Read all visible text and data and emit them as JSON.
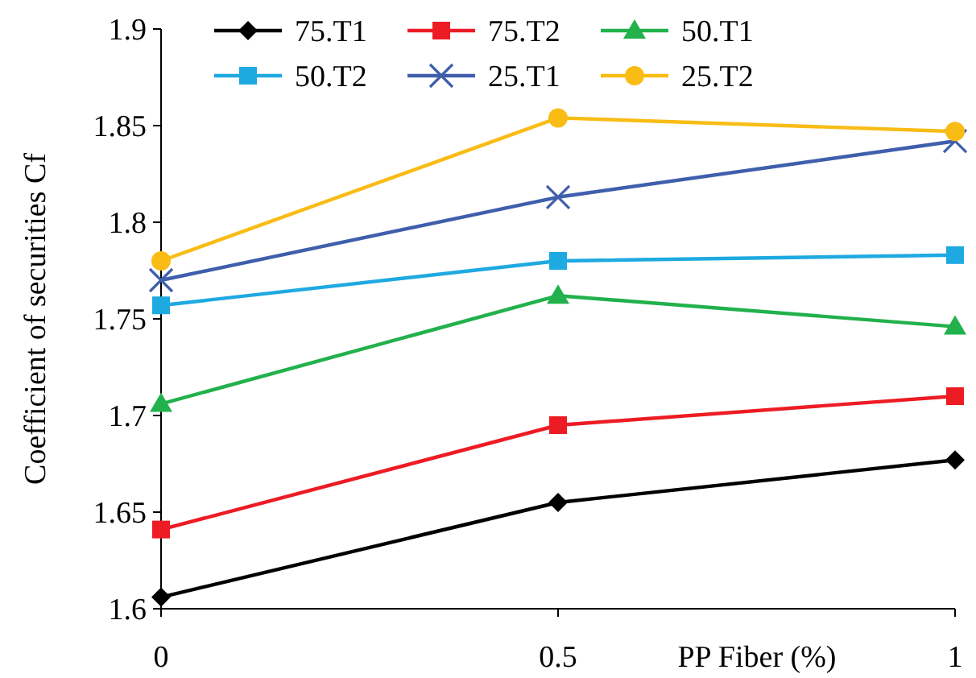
{
  "chart_data": {
    "type": "line",
    "xlabel": "PP Fiber (%)",
    "ylabel": "Coefficient of securities Cf",
    "x": [
      0,
      0.5,
      1
    ],
    "xlim": [
      0,
      1
    ],
    "xticks": [
      0,
      0.5,
      1
    ],
    "ylim": [
      1.6,
      1.9
    ],
    "yticks": [
      1.6,
      1.65,
      1.7,
      1.75,
      1.8,
      1.85,
      1.9
    ],
    "grid": false,
    "legend": "top",
    "series": [
      {
        "name": "75.T1",
        "color": "#000000",
        "marker": "diamond",
        "values": [
          1.606,
          1.655,
          1.677
        ]
      },
      {
        "name": "75.T2",
        "color": "#ed1c24",
        "marker": "square",
        "values": [
          1.641,
          1.695,
          1.71
        ]
      },
      {
        "name": "50.T1",
        "color": "#22b14c",
        "marker": "triangle",
        "values": [
          1.706,
          1.762,
          1.746
        ]
      },
      {
        "name": "50.T2",
        "color": "#1fa9e1",
        "marker": "square",
        "values": [
          1.757,
          1.78,
          1.783
        ]
      },
      {
        "name": "25.T1",
        "color": "#3f5fac",
        "marker": "cross",
        "values": [
          1.77,
          1.813,
          1.842
        ]
      },
      {
        "name": "25.T2",
        "color": "#f9bc15",
        "marker": "circle",
        "values": [
          1.78,
          1.854,
          1.847
        ]
      }
    ]
  }
}
